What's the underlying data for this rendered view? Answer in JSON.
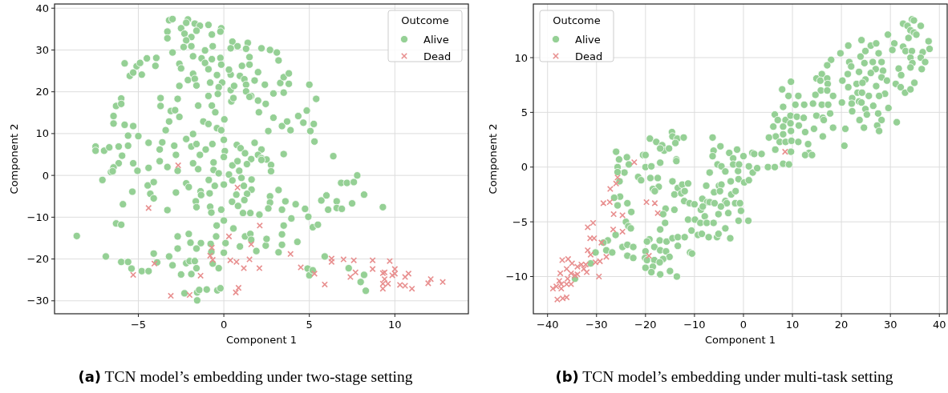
{
  "chart_data": [
    {
      "type": "scatter",
      "xlabel": "Component 1",
      "ylabel": "Component 2",
      "legend_title": "Outcome",
      "legend": "top right",
      "grid": true,
      "xlim": [
        -9.9,
        14.3
      ],
      "ylim": [
        -33.1,
        41
      ],
      "xticks": [
        -5,
        0,
        5,
        10
      ],
      "yticks": [
        -30,
        -20,
        -10,
        0,
        10,
        20,
        30,
        40
      ],
      "annotations": [
        "(a) TCN model’s embedding under two-stage setting"
      ],
      "series": [
        {
          "name": "Alive",
          "color": "#95d095",
          "marker": "circle",
          "x": [
            -3.2,
            -3.0,
            -2.1,
            -2.2,
            -1.7,
            -1.4,
            -0.9,
            -0.15,
            -3.3,
            -2.5,
            -2.3,
            -1.6,
            -0.7,
            -0.2,
            -3.3,
            -1.9,
            -2.2,
            0.5,
            1.4,
            0.8,
            0.4,
            1.3,
            2.2,
            2.7,
            3.1,
            -0.65,
            -2.35,
            -1.9,
            -3.0,
            -1.8,
            -1.3,
            -0.7,
            -0.2,
            -1.1,
            1.5,
            3.2,
            -5.8,
            -5.1,
            -4.9,
            -4.5,
            -3.95,
            -4.0,
            -5.5,
            -5.3,
            -4.8,
            -2.6,
            -2.5,
            -1.1,
            -0.9,
            -0.15,
            1.06,
            1.5,
            -1.8,
            -2.1,
            -1.7,
            -0.8,
            -0.4,
            -0.1,
            0.4,
            0.3,
            0.94,
            1.2,
            2.0,
            1.8,
            2.4,
            3.3,
            3.5,
            3.8,
            3.8,
            5.0,
            -2.6,
            -1.6,
            -0.3,
            0.4,
            0.6,
            1.3,
            1.3,
            1.6,
            2.9,
            3.5,
            5.4,
            -6.0,
            -6.3,
            -6.0,
            -6.45,
            -6.45,
            -5.8,
            -5.3,
            -5.6,
            -5.0,
            -3.7,
            -3.7,
            -3.1,
            -2.85,
            -2.6,
            -2.7,
            -3.2,
            -3.4,
            -1.5,
            -0.9,
            -0.7,
            -0.5,
            -0.35,
            0.03,
            -1.2,
            -0.9,
            -0.4,
            -0.15,
            0.44,
            0.56,
            1.5,
            2.0,
            2.45,
            2.05,
            2.9,
            3.4,
            3.7,
            3.9,
            2.6,
            4.35,
            4.65,
            4.85,
            5.26,
            5.06,
            5.3,
            6.4,
            -7.5,
            -7.5,
            -7.0,
            -6.7,
            -6.15,
            -5.6,
            -5.95,
            -4.4,
            -3.6,
            -3.75,
            -2.9,
            -2.8,
            -2.2,
            -1.9,
            -1.8,
            -1.6,
            -1.06,
            -1.4,
            -0.67,
            0,
            0.06,
            0,
            0.76,
            0.98,
            1.24,
            1.8,
            2.2,
            2.0,
            1.6,
            2.2,
            2.5,
            3.5,
            -6.15,
            -6.45,
            -6.6,
            -6.5,
            -5.3,
            -5.05,
            -4.4,
            -3.75,
            -3.3,
            -2.7,
            -1.8,
            -1.5,
            -0.6,
            -0.6,
            -0.3,
            0.5,
            0.8,
            0.9,
            1.35,
            2.2,
            2.76,
            2.76,
            -7.1,
            -4.45,
            -4.1,
            -5.35,
            -4.3,
            -4.1,
            -5.9,
            -3.3,
            -2.8,
            -2.2,
            -2.05,
            -1.36,
            -1.33,
            -0.88,
            -0.53,
            -0.83,
            -1.64,
            -1.6,
            -0.8,
            -0.73,
            -0.15,
            0,
            0.3,
            0.5,
            1.03,
            1.17,
            1.62,
            1.62,
            1.36,
            0.73,
            0.48,
            1.2,
            0.83,
            1.12,
            1.55,
            2.08,
            2.7,
            2.7,
            2.6,
            3.2,
            3.6,
            3.4,
            4.2,
            4.75,
            4.94,
            5.7,
            6.0,
            6.1,
            6.6,
            6.6,
            6.9,
            6.86,
            7.2,
            7.6,
            7.8,
            7.5,
            8.2,
            9.3,
            5.2,
            5.5,
            3.5,
            3.95,
            -0.42,
            0,
            0.56,
            -0.45,
            0.1,
            0,
            0.94,
            1.24,
            1.55,
            1.6,
            1.9,
            2.45,
            2.5,
            3.4,
            3.4,
            3.2,
            4.3,
            5.9,
            4.9,
            5.0,
            5.2,
            7.3,
            8.2,
            8.0,
            8.3,
            -8.6,
            -6.9,
            -6.3,
            -6.0,
            -6.0,
            -5.6,
            -5.4,
            -4.8,
            -4.4,
            -4.1,
            -3.9,
            -3.2,
            -3.0,
            -2.7,
            -2.7,
            -2.05,
            -1.95,
            -1.34,
            -1.6,
            -0.77,
            -0.73,
            -2.2,
            -2.0,
            -1.7,
            -1.6,
            -2.5,
            -1.9,
            -0.65,
            -0.3,
            -2.3,
            -1.56,
            -1.44,
            -1.56,
            -1.0,
            -0.38,
            -0.2
          ],
          "values": [
            37.1,
            37.4,
            37.3,
            36.5,
            36.3,
            35.8,
            36.0,
            35.2,
            34.4,
            35.2,
            33.9,
            34.6,
            33.7,
            34.4,
            32.8,
            33.1,
            32.3,
            32.0,
            31.7,
            30.9,
            30.4,
            30.3,
            30.4,
            30.0,
            29.4,
            30.9,
            30.7,
            30.9,
            29.4,
            28.5,
            28.0,
            27.8,
            28.1,
            29.9,
            28.3,
            27.5,
            26.8,
            26.1,
            26.9,
            28.0,
            28.1,
            26.2,
            23.8,
            24.6,
            24.1,
            26.7,
            25.6,
            26.9,
            25.4,
            26.5,
            26.2,
            26.5,
            24.3,
            22.8,
            23.1,
            22.2,
            24.0,
            22.2,
            24.1,
            25.3,
            23.8,
            23.0,
            24.7,
            22.7,
            21.7,
            22.1,
            23.5,
            24.4,
            21.9,
            21.7,
            21.4,
            21.5,
            21.1,
            20.4,
            21.4,
            21.7,
            20.1,
            19.0,
            19.6,
            19.8,
            18.3,
            18.4,
            16.6,
            17.1,
            14.2,
            12.4,
            12.1,
            11.8,
            9.5,
            9.4,
            18.5,
            16.6,
            15.4,
            15.6,
            14.0,
            18.3,
            12.9,
            10.8,
            16.7,
            19.0,
            16.7,
            15.1,
            19.5,
            13.4,
            12.9,
            12.3,
            11.3,
            10.8,
            17.7,
            18.5,
            18.8,
            17.9,
            17.1,
            15.1,
            13.8,
            11.8,
            12.9,
            10.8,
            10.6,
            14.2,
            12.6,
            15.5,
            12.3,
            10.6,
            8.1,
            4.6,
            6.9,
            5.9,
            5.9,
            6.7,
            6.9,
            7.1,
            4.7,
            7.8,
            7.9,
            6.2,
            7.1,
            4.9,
            8.7,
            6.9,
            9.9,
            7.5,
            6.2,
            4.9,
            7.5,
            8.5,
            5.8,
            4.4,
            7.3,
            6.5,
            5.3,
            7.8,
            6.2,
            4.9,
            3.9,
            4.1,
            3.8,
            5.1,
            2.9,
            1.9,
            0.8,
            1.0,
            2.9,
            1.1,
            1.8,
            3.4,
            2.0,
            1.1,
            2.9,
            1.5,
            3.1,
            1.3,
            0.5,
            2.4,
            3.4,
            1.1,
            2.7,
            3.7,
            2.5,
            1.0,
            -1.1,
            -2.4,
            -1.6,
            -3.9,
            -4.4,
            -5.5,
            -6.9,
            -8.3,
            -4.1,
            -1.9,
            -2.8,
            -3.8,
            -4.7,
            -1.1,
            -2.5,
            -4.3,
            -6.2,
            -7.6,
            -7.5,
            -8.9,
            -8.2,
            -2.2,
            0.2,
            -1.2,
            -0.6,
            -2.5,
            -1.0,
            -3.4,
            -4.4,
            -4.6,
            -6.3,
            -5.9,
            -7.3,
            -9.0,
            -9.0,
            -9.4,
            -5.0,
            -6.5,
            -7.9,
            -3.5,
            -6.2,
            -8.2,
            -6.9,
            -8.0,
            -9.9,
            -6.0,
            -4.8,
            -8.2,
            -6.2,
            -7.8,
            -8.0,
            -1.8,
            -1.8,
            -1.6,
            0,
            -6.7,
            -4.6,
            -7.6,
            -12.4,
            -11.8,
            -12.0,
            -10.3,
            -12.0,
            -10.8,
            -12.7,
            -14.6,
            -16.2,
            -18.5,
            -17.0,
            -14.6,
            -14.0,
            -15.4,
            -18.1,
            -16.8,
            -15.2,
            -14.1,
            -16.6,
            -18.4,
            -15.9,
            -19.4,
            -22.3,
            -23.9,
            -22.7,
            -22.2,
            -23.8,
            -25.5,
            -27.6,
            -14.5,
            -19.4,
            -11.5,
            -11.8,
            -20.7,
            -20.7,
            -22.3,
            -22.9,
            -22.9,
            -18.7,
            -20.8,
            -19.4,
            -21.5,
            -17.5,
            -14.6,
            -14.0,
            -16.1,
            -16.2,
            -17.5,
            -16.4,
            -18.3,
            -21.0,
            -20.5,
            -20.5,
            -22.2,
            -23.7,
            -23.6,
            -21.1,
            -22.2,
            -28.2,
            -28.0,
            -27.4,
            -29.9,
            -27.3,
            -27.5,
            -27.0
          ]
        },
        {
          "name": "Dead",
          "color": "#e88f8f",
          "marker": "cross",
          "x": [
            -2.67,
            -4.4,
            0.8,
            2.1,
            0.3,
            1.6,
            -0.7,
            -0.8,
            -0.65,
            -4.06,
            -5.3,
            -1.36,
            -3.1,
            -2.0,
            0.7,
            0.86,
            0.38,
            0.74,
            1.5,
            1.17,
            2.08,
            3.9,
            4.5,
            5.3,
            5.9,
            6.3,
            6.3,
            7.0,
            7.6,
            7.7,
            7.4,
            8.7,
            8.7,
            9.7,
            9.3,
            9.4,
            9.4,
            9.3,
            9.6,
            9.3,
            9.85,
            10.0,
            10.0,
            10.3,
            10.6,
            10.6,
            10.8,
            11.0,
            11.95,
            12.1,
            12.8
          ],
          "values": [
            2.4,
            -7.8,
            -2.9,
            -12.0,
            -14.6,
            -16.5,
            -17.3,
            -19.2,
            -20.2,
            -21.1,
            -23.8,
            -24.0,
            -28.8,
            -28.6,
            -28.0,
            -26.9,
            -20.3,
            -20.7,
            -20.1,
            -22.2,
            -22.2,
            -18.8,
            -22.0,
            -23.5,
            -26.1,
            -19.9,
            -20.7,
            -20.1,
            -20.3,
            -23.2,
            -24.3,
            -20.3,
            -22.4,
            -20.5,
            -23.4,
            -23.2,
            -24.8,
            -25.9,
            -25.9,
            -27.1,
            -23.9,
            -22.4,
            -23.5,
            -26.2,
            -24.3,
            -26.4,
            -23.5,
            -27.1,
            -25.8,
            -24.8,
            -25.5
          ]
        }
      ]
    },
    {
      "type": "scatter",
      "xlabel": "Component 1",
      "ylabel": "Component 2",
      "legend_title": "Outcome",
      "legend": "top left",
      "grid": true,
      "xlim": [
        -42.9,
        41.6
      ],
      "ylim": [
        -13.4,
        14.9
      ],
      "xticks": [
        -40,
        -30,
        -20,
        -10,
        0,
        10,
        20,
        30,
        40
      ],
      "yticks": [
        -10,
        -5,
        0,
        5,
        10
      ],
      "annotations": [
        "(b) TCN model’s embedding under multi-task setting"
      ],
      "series": [
        {
          "name": "Alive",
          "color": "#95d095",
          "marker": "circle",
          "x": [
            34.4,
            34.8,
            32.6,
            33.5,
            36.2,
            34.1,
            34.8,
            35.3,
            29.5,
            33.7,
            37.8,
            30.8,
            32.6,
            30.4,
            33.1,
            34.4,
            36.6,
            38.0,
            34.1,
            36.2,
            37.1,
            34.5,
            36.4,
            34.1,
            31.7,
            32.2,
            34.9,
            31.1,
            32.1,
            33.0,
            34.1,
            31.3,
            21.4,
            24.1,
            19.8,
            24.9,
            26.0,
            27.1,
            27.6,
            23.9,
            21.6,
            24.7,
            26.4,
            28.2,
            22.0,
            27.0,
            23.6,
            26.0,
            28.5,
            21.3,
            24.9,
            28.2,
            29.3,
            20.2,
            21.4,
            23.1,
            24.3,
            27.1,
            28.9,
            27.7,
            23.3,
            24.2,
            25.6,
            22.2,
            23.6,
            20.1,
            22.1,
            24.1,
            26.5,
            29.6,
            22.2,
            24.9,
            27.5,
            23.7,
            25.2,
            28.2,
            27.3,
            24.6,
            27.7,
            20.8,
            20.6,
            17.9,
            17.1,
            14.9,
            16.0,
            15.7,
            17.1,
            17.2,
            15.8,
            17.1,
            14.7,
            18.3,
            14.2,
            16.0,
            17.3,
            17.7,
            14.9,
            16.2,
            16.4,
            14.4,
            16.2,
            18.3,
            9.7,
            7.9,
            11.2,
            9.2,
            12.4,
            10.6,
            8.1,
            6.4,
            7.0,
            8.6,
            9.6,
            10.9,
            12.3,
            6.1,
            8.1,
            9.6,
            11.3,
            12.6,
            9.7,
            8.1,
            6.6,
            5.2,
            7.4,
            8.6,
            9.8,
            11.2,
            13.2,
            6.5,
            9.7,
            13.4,
            12.6,
            14.0,
            -6.3,
            -6.1,
            -6.3,
            -4.7,
            -2.9,
            -2.1,
            -1.3,
            0,
            1.8,
            2.2,
            3.7,
            -19.1,
            -17.8,
            -16.6,
            -16.2,
            -15.2,
            -14.6,
            -14.5,
            -13.5,
            -12.2,
            -13.9,
            -17.0,
            -26.0,
            -25.4,
            -23.8,
            -20.5,
            -20.0,
            -13.7,
            -25.7,
            -24.3,
            -25.7,
            -23.4,
            -25.3,
            -21.5,
            -20.9,
            -20.0,
            -18.8,
            -19.0,
            -17.5,
            -17.3,
            -18.5,
            -18.1,
            -17.0,
            -13.7,
            -14.5,
            -13.4,
            -12.5,
            -11.3,
            -14.1,
            -12.7,
            -12.0,
            -12.1,
            -11.0,
            -10.0,
            -6.9,
            -5.3,
            -4.5,
            -3.7,
            -1.1,
            -2.6,
            -1.0,
            0.16,
            1.1,
            1.9,
            2.8,
            5.0,
            6.4,
            8.1,
            9.3,
            -2.1,
            -0.9,
            1.1,
            -5.0,
            -4.5,
            -7.6,
            -6.0,
            -4.8,
            -2.5,
            -1.6,
            -3.7,
            -3.4,
            -1.7,
            -0.7,
            -8.4,
            -7.4,
            -6.9,
            -5.9,
            -4.6,
            -8.7,
            -8.3,
            -7.9,
            -5.1,
            -3.1,
            -0.5,
            -1.0,
            1.0,
            -11.3,
            -9.9,
            -8.8,
            -7.5,
            -6.1,
            -10.6,
            -9.3,
            -8.5,
            -7.1,
            -5.4,
            -5.1,
            -3.7,
            -2.7,
            -15.9,
            -14.1,
            -16.4,
            -16.0,
            -17.0,
            -19.2,
            -19.7,
            -17.1,
            -15.7,
            -14.5,
            -13.4,
            -12.0,
            -13.4,
            -18.2,
            -17.0,
            -15.8,
            -15.1,
            -10.9,
            -10.5,
            -20.0,
            -20.1,
            -19.7,
            -18.2,
            -16.4,
            -17.1,
            -18.5,
            -20.0,
            -18.8,
            -17.0,
            -15.0,
            -13.6,
            -25.7,
            -23.7,
            -22.9,
            -24.0,
            -23.5,
            -23.0,
            -26.1,
            -27.7,
            -28.6,
            -30.2,
            -28.0,
            -26.8,
            -24.7,
            -23.7,
            -22.5,
            -23.7,
            -22.5,
            -31.2,
            -25.2,
            -26.4,
            -34.4
          ],
          "values": [
            13.5,
            13.4,
            13.1,
            12.9,
            12.9,
            12.5,
            12.3,
            12.1,
            12.1,
            11.8,
            11.5,
            11.3,
            11.0,
            10.7,
            10.6,
            10.6,
            10.5,
            10.8,
            10.0,
            10.0,
            9.6,
            9.5,
            8.95,
            9.1,
            9.0,
            8.4,
            7.7,
            7.6,
            7.3,
            6.8,
            7.1,
            4.1,
            11.1,
            11.6,
            10.4,
            10.6,
            11.1,
            11.3,
            10.4,
            10.1,
            9.6,
            9.5,
            9.6,
            9.6,
            9.2,
            8.95,
            8.7,
            8.6,
            8.8,
            8.5,
            8.0,
            8.2,
            7.9,
            7.9,
            7.3,
            7.6,
            7.7,
            7.4,
            6.7,
            6.5,
            6.8,
            6.8,
            6.5,
            6.3,
            6.0,
            5.9,
            5.8,
            5.9,
            5.6,
            5.4,
            5.1,
            5.3,
            4.9,
            4.3,
            4.8,
            4.3,
            3.8,
            3.6,
            3.3,
            3.5,
            1.95,
            9.8,
            9.3,
            8.1,
            8.5,
            7.9,
            8.1,
            7.6,
            7.0,
            7.0,
            6.6,
            6.5,
            5.8,
            5.7,
            5.7,
            4.9,
            4.7,
            4.5,
            4.3,
            3.5,
            2.8,
            3.6,
            7.8,
            7.1,
            6.5,
            6.5,
            5.7,
            5.7,
            5.5,
            4.8,
            4.3,
            4.3,
            4.7,
            4.6,
            4.5,
            3.7,
            3.7,
            4.0,
            3.8,
            3.2,
            3.3,
            3.0,
            2.8,
            2.7,
            2.3,
            2.3,
            2.4,
            2.3,
            2.1,
            1.6,
            1.4,
            1.3,
            1.1,
            1.1,
            2.7,
            1.5,
            1.0,
            1.9,
            1.3,
            0.8,
            1.6,
            1.0,
            1.3,
            1.2,
            1.2,
            2.6,
            2.3,
            2.0,
            1.5,
            1.7,
            3.2,
            2.8,
            2.6,
            2.7,
            2.2,
            1.7,
            1.4,
            0.7,
            0.9,
            1.1,
            1.1,
            0.7,
            0,
            -0.5,
            -0.46,
            0.24,
            -1.3,
            -0.9,
            -1.2,
            0,
            0.07,
            -1.0,
            -1.0,
            -1.8,
            -2.0,
            -2.2,
            0.4,
            0.55,
            -1.3,
            -1.9,
            -1.6,
            -1.5,
            -2.5,
            -2.4,
            -2.2,
            -3.1,
            -3.3,
            -3.4,
            -0.5,
            0.24,
            0.07,
            -0.4,
            -0.36,
            -1.3,
            -1.1,
            -1.4,
            -1.2,
            -0.5,
            -0.1,
            0,
            0,
            0.3,
            0.24,
            0.24,
            0.24,
            0.07,
            -1.7,
            -1.6,
            -1.7,
            -2.3,
            -2.2,
            -2.5,
            -2.2,
            -3.1,
            -3.3,
            -3.3,
            -3.3,
            -2.9,
            -3.2,
            -3.2,
            -3.3,
            -3.6,
            -3.9,
            -3.6,
            -4.5,
            -4.3,
            -4.2,
            -4.0,
            -4.9,
            -4.9,
            -4.8,
            -4.8,
            -5.1,
            -5.1,
            -5.1,
            -5.8,
            -6.2,
            -6.1,
            -6.4,
            -6.4,
            -6.1,
            -5.6,
            -6.5,
            -3.8,
            -3.9,
            -4.3,
            -5.1,
            -5.7,
            -6.6,
            -6.8,
            -6.7,
            -6.8,
            -6.5,
            -6.4,
            -6.4,
            -7.2,
            -7.3,
            -7.6,
            -7.7,
            -8.2,
            -7.8,
            -7.9,
            -7.7,
            -8.3,
            -8.5,
            -8.5,
            -8.4,
            -8.7,
            -9.1,
            -9.2,
            -9.6,
            -9.8,
            -9.5,
            -10.0,
            -3.5,
            -3.3,
            -4.1,
            -5.0,
            -5.4,
            -5.6,
            -6.2,
            -6.7,
            -6.9,
            -7.8,
            -7.6,
            -7.8,
            -7.3,
            -7.1,
            -7.3,
            -8.1,
            -8.3,
            -8.8,
            -2.7,
            -2.8,
            -10.2
          ]
        },
        {
          "name": "Dead",
          "color": "#e88f8f",
          "marker": "cross",
          "x": [
            8.5,
            -22.3,
            -25.7,
            -26.0,
            -27.2,
            -28.6,
            -27.3,
            -26.5,
            -24.7,
            -19.8,
            -18.1,
            -17.5,
            -26.6,
            -24.7,
            -31.8,
            -30.7,
            -31.3,
            -30.5,
            -29.0,
            -31.8,
            -31.2,
            -28.0,
            -29.3,
            -30.2,
            -19.3,
            -37.0,
            -35.8,
            -35.0,
            -33.9,
            -33.1,
            -32.2,
            -32.6,
            -32.0,
            -36.1,
            -37.4,
            -35.2,
            -34.4,
            -33.9,
            -29.5,
            -35.9,
            -37.6,
            -37.2,
            -36.1,
            -35.2,
            null,
            -38.9,
            -38.2,
            -37.2,
            -38.0,
            -36.9,
            -36.1
          ],
          "values": [
            1.4,
            0.44,
            -0.95,
            -1.5,
            -2.0,
            -3.3,
            -3.2,
            -4.3,
            -4.4,
            -3.2,
            -3.3,
            -4.2,
            -5.7,
            -5.9,
            -5.5,
            -5.1,
            -6.5,
            -6.5,
            -6.9,
            -7.6,
            -8.0,
            -8.2,
            -8.6,
            -8.7,
            -8.1,
            -8.5,
            -8.4,
            -8.8,
            -9.1,
            -8.9,
            -8.9,
            -9.3,
            -9.6,
            -9.3,
            -9.7,
            -9.7,
            -9.9,
            -9.8,
            -10.0,
            -10.2,
            -10.4,
            -10.7,
            -10.7,
            -10.7,
            null,
            -11.1,
            -10.9,
            -11.1,
            -12.1,
            -12.0,
            -11.9
          ]
        }
      ]
    }
  ]
}
